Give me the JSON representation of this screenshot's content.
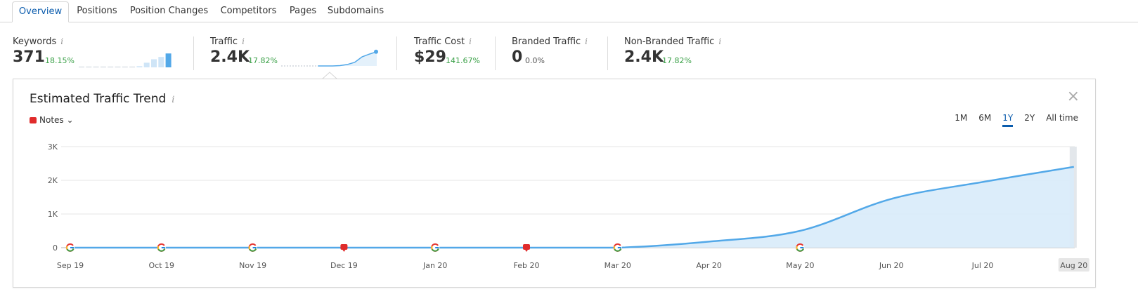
{
  "tabs": [
    {
      "label": "Overview"
    },
    {
      "label": "Positions"
    },
    {
      "label": "Position Changes"
    },
    {
      "label": "Competitors"
    },
    {
      "label": "Pages"
    },
    {
      "label": "Subdomains"
    }
  ],
  "metrics": [
    {
      "label": "Keywords",
      "value": "371",
      "change": "18.15%",
      "sparkline": [
        0,
        0,
        0,
        0,
        0,
        0,
        0,
        0,
        0.05,
        0.2,
        0.35,
        0.45,
        0.6
      ]
    },
    {
      "label": "Traffic",
      "value": "2.4K",
      "change": "17.82%",
      "sparkline": [
        0,
        0,
        0,
        0,
        0,
        0,
        0,
        0,
        0.02,
        0.08,
        0.2,
        0.5,
        0.65,
        0.78
      ]
    },
    {
      "label": "Traffic Cost",
      "value": "$29",
      "change": "141.67%"
    },
    {
      "label": "Branded Traffic",
      "value": "0",
      "change": "0.0%"
    },
    {
      "label": "Non-Branded Traffic",
      "value": "2.4K",
      "change": "17.82%"
    }
  ],
  "info_glyph": "i",
  "panel": {
    "title": "Estimated Traffic Trend",
    "notes_label": "Notes",
    "close_glyph": "×",
    "ranges": [
      "1M",
      "6M",
      "1Y",
      "2Y",
      "All time"
    ],
    "active_range": "1Y"
  },
  "colors": {
    "line": "#52a8e8",
    "fill": "#d8ebf9",
    "note": "#e02b2b"
  },
  "chart_data": {
    "type": "area",
    "title": "Estimated Traffic Trend",
    "x": [
      "Sep 19",
      "Oct 19",
      "Nov 19",
      "Dec 19",
      "Jan 20",
      "Feb 20",
      "Mar 20",
      "Apr 20",
      "May 20",
      "Jun 20",
      "Jul 20",
      "Aug 20"
    ],
    "yticks": [
      "3K",
      "2K",
      "1K",
      "0"
    ],
    "ylim": [
      0,
      3000
    ],
    "series": [
      {
        "values": [
          0,
          0,
          0,
          0,
          0,
          0,
          0,
          180,
          500,
          1450,
          1950,
          2400
        ]
      }
    ],
    "markers": [
      {
        "month": "Sep 19",
        "kind": "google"
      },
      {
        "month": "Oct 19",
        "kind": "google"
      },
      {
        "month": "Nov 19",
        "kind": "google"
      },
      {
        "month": "Dec 19",
        "kind": "note"
      },
      {
        "month": "Jan 20",
        "kind": "google"
      },
      {
        "month": "Feb 20",
        "kind": "note"
      },
      {
        "month": "Mar 20",
        "kind": "google"
      },
      {
        "month": "May 20",
        "kind": "google"
      }
    ],
    "highlighted_x": "Aug 20",
    "grid": true,
    "legend": "none"
  }
}
